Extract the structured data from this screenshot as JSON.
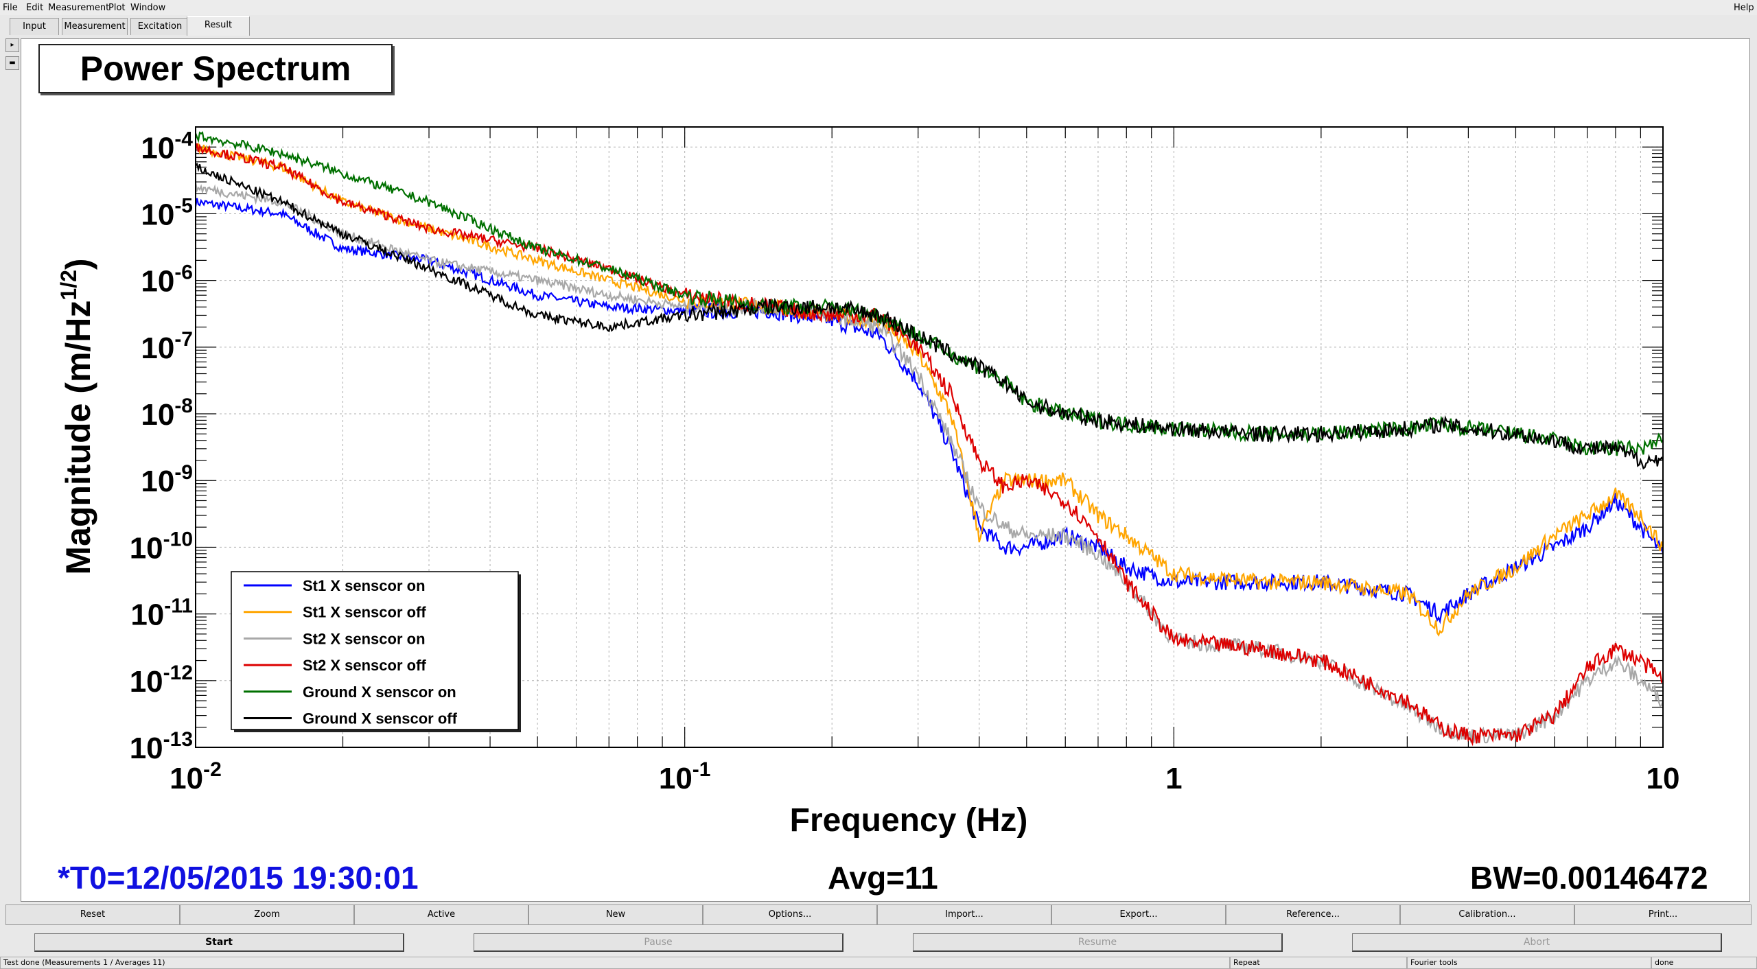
{
  "menubar": {
    "file": "File",
    "edit": "Edit",
    "measurement": "Measurement",
    "plot": "Plot",
    "window": "Window",
    "help": "Help"
  },
  "tabs": [
    "Input",
    "Measurement",
    "Excitation",
    "Result"
  ],
  "info": {
    "t0": "*T0=12/05/2015 19:30:01",
    "avg": "Avg=11",
    "bw": "BW=0.00146472",
    "t0_color": "#1010e0"
  },
  "toolbar": [
    "Reset",
    "Zoom",
    "Active",
    "New",
    "Options...",
    "Import...",
    "Export...",
    "Reference...",
    "Calibration...",
    "Print..."
  ],
  "controls": {
    "start": "Start",
    "pause": "Pause",
    "resume": "Resume",
    "abort": "Abort"
  },
  "status": {
    "main": "Test done (Measurements 1 / Averages 11)",
    "repeat": "Repeat",
    "fourier": "Fourier tools",
    "done": "done"
  },
  "chart_data": {
    "type": "line",
    "title": "Power Spectrum",
    "xlabel": "Frequency (Hz)",
    "ylabel": "Magnitude (m/Hz",
    "ylabel_sup": "1/2",
    "ylabel_close": ")",
    "xscale": "log",
    "yscale": "log",
    "xlim": [
      0.01,
      10
    ],
    "ylim": [
      1e-13,
      0.0002
    ],
    "grid": true,
    "legend_position": "bottom-left",
    "x_ticks": [
      {
        "base": "10",
        "exp": "-2"
      },
      {
        "base": "10",
        "exp": "-1"
      },
      {
        "base": "1",
        "exp": ""
      },
      {
        "base": "10",
        "exp": ""
      }
    ],
    "y_ticks": [
      {
        "base": "10",
        "exp": "-4"
      },
      {
        "base": "10",
        "exp": "-5"
      },
      {
        "base": "10",
        "exp": "-6"
      },
      {
        "base": "10",
        "exp": "-7"
      },
      {
        "base": "10",
        "exp": "-8"
      },
      {
        "base": "10",
        "exp": "-9"
      },
      {
        "base": "10",
        "exp": "-10"
      },
      {
        "base": "10",
        "exp": "-11"
      },
      {
        "base": "10",
        "exp": "-12"
      },
      {
        "base": "10",
        "exp": "-13"
      }
    ],
    "x": [
      0.01,
      0.015,
      0.02,
      0.03,
      0.05,
      0.07,
      0.1,
      0.15,
      0.2,
      0.25,
      0.3,
      0.35,
      0.4,
      0.45,
      0.5,
      0.6,
      0.7,
      0.8,
      1.0,
      1.5,
      2.0,
      3.0,
      3.5,
      4.0,
      5.0,
      6.0,
      7.0,
      8.0,
      9.0,
      10.0
    ],
    "series": [
      {
        "name": "St1 X senscor on",
        "color": "#0000ff",
        "values": [
          1.5e-05,
          1e-05,
          3e-06,
          2e-06,
          6e-07,
          4e-07,
          3.5e-07,
          3.5e-07,
          2.5e-07,
          1.5e-07,
          3e-08,
          3e-09,
          2e-10,
          1e-10,
          1e-10,
          1.5e-10,
          1e-10,
          5e-11,
          3e-11,
          3e-11,
          3e-11,
          2e-11,
          1e-11,
          2e-11,
          5e-11,
          1e-10,
          2e-10,
          5e-10,
          2e-10,
          8e-11
        ]
      },
      {
        "name": "St1 X senscor off",
        "color": "#ffa500",
        "values": [
          0.0001,
          5e-05,
          1.5e-05,
          6e-06,
          2e-06,
          1e-06,
          5e-07,
          4e-07,
          3e-07,
          2.5e-07,
          8e-08,
          1e-08,
          1.5e-10,
          1e-09,
          1e-09,
          1e-09,
          3e-10,
          1.5e-10,
          4e-11,
          3e-11,
          3e-11,
          2e-11,
          6e-12,
          2e-11,
          5e-11,
          1.5e-10,
          3e-10,
          6e-10,
          3e-10,
          1e-10
        ]
      },
      {
        "name": "St2 X senscor on",
        "color": "#a8a8a8",
        "values": [
          2.5e-05,
          1.5e-05,
          5e-06,
          2e-06,
          1e-06,
          6e-07,
          4e-07,
          4e-07,
          3e-07,
          2e-07,
          4e-08,
          4e-09,
          4e-10,
          2e-10,
          1.5e-10,
          1.5e-10,
          8e-11,
          3e-11,
          4e-12,
          3e-12,
          2e-12,
          4e-13,
          2e-13,
          1.5e-13,
          1.5e-13,
          3e-13,
          1e-12,
          2e-12,
          1e-12,
          5e-13
        ]
      },
      {
        "name": "St2 X senscor off",
        "color": "#dd0000",
        "values": [
          0.0001,
          5e-05,
          1.5e-05,
          6e-06,
          3e-06,
          1.5e-06,
          6e-07,
          4e-07,
          3e-07,
          3e-07,
          1e-07,
          2e-08,
          2e-09,
          8e-10,
          1e-09,
          5e-10,
          1.5e-10,
          3e-11,
          4e-12,
          3e-12,
          2e-12,
          5e-13,
          2e-13,
          1.5e-13,
          1.5e-13,
          3e-13,
          1.5e-12,
          3e-12,
          2e-12,
          1e-12
        ]
      },
      {
        "name": "Ground X senscor on",
        "color": "#007000",
        "values": [
          0.00015,
          8e-05,
          4e-05,
          1.5e-05,
          3e-06,
          1.5e-06,
          6e-07,
          4e-07,
          4e-07,
          3e-07,
          1.5e-07,
          8e-08,
          5e-08,
          3e-08,
          1.5e-08,
          1e-08,
          8e-09,
          7e-09,
          6e-09,
          5e-09,
          5e-09,
          6e-09,
          7e-09,
          6e-09,
          5e-09,
          4e-09,
          3e-09,
          3e-09,
          3e-09,
          4e-09
        ]
      },
      {
        "name": "Ground X senscor off",
        "color": "#000000",
        "values": [
          5e-05,
          1.5e-05,
          5e-06,
          1.5e-06,
          3e-07,
          2e-07,
          3e-07,
          4e-07,
          4e-07,
          3e-07,
          1.5e-07,
          8e-08,
          5e-08,
          3e-08,
          1.5e-08,
          1e-08,
          8e-09,
          7e-09,
          6e-09,
          5e-09,
          5e-09,
          6e-09,
          7e-09,
          6e-09,
          5e-09,
          4e-09,
          3e-09,
          3e-09,
          2e-09,
          2e-09
        ]
      }
    ]
  }
}
